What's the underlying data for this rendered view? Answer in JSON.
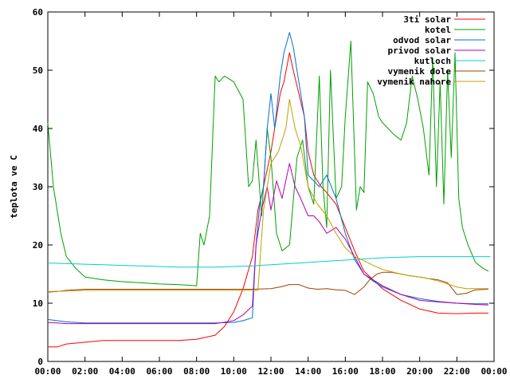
{
  "chart_data": {
    "type": "line",
    "title": "",
    "xlabel": "",
    "ylabel": "teplota ve C",
    "xlim": [
      0,
      24
    ],
    "ylim": [
      0,
      60
    ],
    "grid": false,
    "legend_position": "top-right",
    "x_tick_labels": [
      "00:00",
      "02:00",
      "04:00",
      "06:00",
      "08:00",
      "10:00",
      "12:00",
      "14:00",
      "16:00",
      "18:00",
      "20:00",
      "22:00",
      "00:00"
    ],
    "y_tick_labels": [
      "0",
      "10",
      "20",
      "30",
      "40",
      "50",
      "60"
    ],
    "series": [
      {
        "name": "3ti solar",
        "color": "#ff0000",
        "x": [
          0,
          0.5,
          1,
          2,
          3,
          4,
          5,
          6,
          7,
          8,
          9,
          9.5,
          10,
          10.5,
          11,
          11.3,
          11.6,
          12,
          12.3,
          12.5,
          12.7,
          13,
          13.2,
          13.5,
          13.8,
          14,
          14.3,
          14.7,
          15,
          15.5,
          16,
          16.5,
          17,
          17.5,
          18,
          19,
          20,
          21,
          22,
          23,
          23.7
        ],
        "y": [
          2.5,
          2.5,
          3,
          3.3,
          3.6,
          3.6,
          3.6,
          3.6,
          3.6,
          3.8,
          4.5,
          6,
          8.5,
          12.5,
          18,
          26,
          30,
          36,
          42,
          46,
          48,
          53,
          50,
          46,
          42,
          36,
          32,
          30,
          29,
          27,
          23,
          19,
          15.5,
          14,
          12.5,
          10.5,
          9,
          8.3,
          8.2,
          8.3,
          8.3
        ]
      },
      {
        "name": "kotel",
        "color": "#00a000",
        "x": [
          0,
          0.3,
          0.7,
          1,
          1.5,
          2,
          3,
          4,
          5,
          6,
          7,
          8,
          8.2,
          8.4,
          8.7,
          9,
          9.2,
          9.5,
          10,
          10.5,
          10.8,
          11,
          11.2,
          11.5,
          11.8,
          12,
          12.3,
          12.6,
          13,
          13.4,
          13.7,
          14,
          14.3,
          14.6,
          14.8,
          15,
          15.2,
          15.5,
          15.8,
          16,
          16.3,
          16.6,
          16.8,
          17,
          17.2,
          17.5,
          17.8,
          18,
          18.3,
          18.6,
          19,
          19.3,
          19.6,
          19.9,
          20.2,
          20.5,
          20.7,
          20.9,
          21.1,
          21.3,
          21.5,
          21.7,
          21.9,
          22.1,
          22.3,
          22.6,
          23,
          23.4,
          23.7
        ],
        "y": [
          41,
          30,
          22,
          18,
          16,
          14.5,
          14,
          13.7,
          13.5,
          13.3,
          13.2,
          13,
          22,
          20,
          25,
          49,
          48,
          49,
          48,
          45,
          30,
          31,
          38,
          25,
          40,
          35,
          22,
          19,
          20,
          35,
          38,
          30,
          27,
          49,
          30,
          23,
          50,
          28,
          30,
          42,
          55,
          26,
          30,
          29,
          48,
          46,
          42,
          41,
          40,
          39,
          38,
          41,
          49,
          45,
          40,
          32,
          52,
          30,
          48,
          27,
          50,
          35,
          53,
          28,
          23,
          20,
          17,
          16,
          15.5
        ]
      },
      {
        "name": "odvod solar",
        "color": "#0070d0",
        "x": [
          0,
          0.5,
          1,
          2,
          3,
          4,
          5,
          6,
          7,
          8,
          9,
          10,
          10.5,
          11,
          11.2,
          11.4,
          11.6,
          11.8,
          12,
          12.2,
          12.5,
          12.7,
          13,
          13.2,
          13.5,
          13.8,
          14,
          14.3,
          14.6,
          15,
          15.5,
          16,
          16.5,
          17,
          17.5,
          18,
          19,
          20,
          21,
          22,
          23,
          23.7
        ],
        "y": [
          7.2,
          7,
          6.8,
          6.6,
          6.6,
          6.6,
          6.6,
          6.6,
          6.6,
          6.6,
          6.6,
          6.7,
          7,
          7.5,
          20,
          27,
          30,
          40,
          46,
          40,
          49,
          53,
          56.5,
          54,
          48,
          42,
          32,
          31,
          30,
          32,
          28,
          22,
          17.5,
          15,
          13.8,
          12.8,
          11.5,
          10.8,
          10.3,
          10,
          9.9,
          9.9
        ]
      },
      {
        "name": "privod solar",
        "color": "#b000b0",
        "x": [
          0,
          0.5,
          1,
          2,
          3,
          4,
          5,
          6,
          7,
          8,
          9,
          10,
          10.5,
          11,
          11.2,
          11.5,
          11.8,
          12,
          12.3,
          12.6,
          13,
          13.3,
          13.6,
          14,
          14.3,
          14.6,
          15,
          15.5,
          16,
          16.5,
          17,
          17.5,
          18,
          19,
          20,
          21,
          22,
          23,
          23.7
        ],
        "y": [
          6.7,
          6.6,
          6.5,
          6.5,
          6.5,
          6.5,
          6.5,
          6.5,
          6.5,
          6.5,
          6.5,
          7,
          8,
          9.5,
          20,
          26,
          30,
          26,
          31,
          28,
          34,
          30,
          28,
          25,
          25,
          24,
          22,
          23,
          21,
          18,
          15,
          14,
          13,
          11.5,
          10.5,
          10.2,
          10,
          9.8,
          9.7
        ]
      },
      {
        "name": "kutloch",
        "color": "#00d0d0",
        "x": [
          0,
          1,
          2,
          3,
          4,
          5,
          6,
          7,
          8,
          9,
          10,
          11,
          12,
          13,
          14,
          15,
          16,
          17,
          18,
          19,
          20,
          21,
          22,
          23,
          23.8
        ],
        "y": [
          16.9,
          16.8,
          16.7,
          16.6,
          16.5,
          16.4,
          16.3,
          16.2,
          16.2,
          16.2,
          16.3,
          16.4,
          16.6,
          16.8,
          17,
          17.2,
          17.4,
          17.6,
          17.8,
          17.9,
          18,
          18,
          18,
          18,
          18
        ]
      },
      {
        "name": "vymenik dole",
        "color": "#a04000",
        "x": [
          0,
          0.5,
          1,
          2,
          3,
          4,
          5,
          6,
          7,
          8,
          9,
          10,
          11,
          12,
          12.5,
          13,
          13.5,
          14,
          14.5,
          15,
          15.5,
          16,
          16.5,
          17,
          17.3,
          17.7,
          18,
          18.5,
          19,
          19.5,
          20,
          20.5,
          21,
          21.5,
          22,
          22.5,
          23,
          23.7
        ],
        "y": [
          11.9,
          12,
          12.2,
          12.4,
          12.4,
          12.4,
          12.4,
          12.4,
          12.4,
          12.4,
          12.4,
          12.4,
          12.4,
          12.5,
          12.8,
          13.2,
          13.2,
          12.6,
          12.4,
          12.5,
          12.3,
          12.2,
          11.5,
          12.8,
          14,
          15,
          15.3,
          15.3,
          15,
          14.7,
          14.5,
          14.2,
          14,
          13.5,
          11.5,
          11.7,
          12.3,
          12.4
        ]
      },
      {
        "name": "vymenik nahore",
        "color": "#c0a000",
        "x": [
          0,
          1,
          2,
          3,
          4,
          5,
          6,
          7,
          8,
          9,
          10,
          11,
          11.3,
          11.6,
          12,
          12.4,
          12.8,
          13,
          13.3,
          13.6,
          14,
          14.5,
          15,
          15.5,
          16,
          16.5,
          17,
          17.5,
          18,
          18.5,
          19,
          19.5,
          20,
          20.5,
          21,
          21.5,
          22,
          22.5,
          23,
          23.7
        ],
        "y": [
          12,
          12.1,
          12.2,
          12.2,
          12.2,
          12.2,
          12.2,
          12.2,
          12.2,
          12.2,
          12.2,
          12.2,
          12.2,
          26,
          34,
          36,
          40,
          45,
          40,
          37,
          30,
          27,
          25,
          22,
          19.5,
          18,
          17.3,
          16.5,
          15.8,
          15.4,
          15,
          14.7,
          14.5,
          14.2,
          13.8,
          13.3,
          12.8,
          12.5,
          12.5,
          12.5
        ]
      }
    ]
  }
}
